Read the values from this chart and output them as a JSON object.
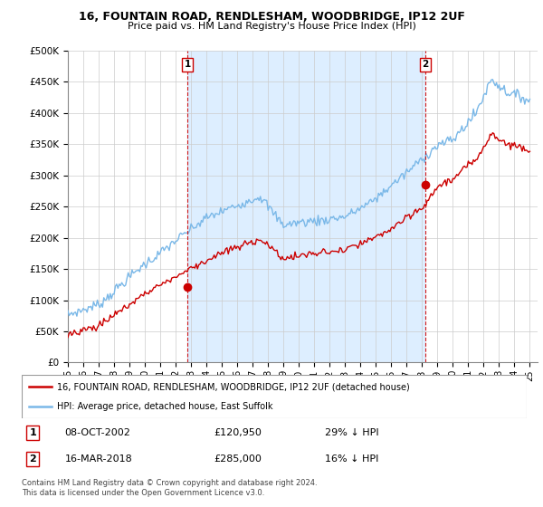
{
  "title": "16, FOUNTAIN ROAD, RENDLESHAM, WOODBRIDGE, IP12 2UF",
  "subtitle": "Price paid vs. HM Land Registry's House Price Index (HPI)",
  "ytick_values": [
    0,
    50000,
    100000,
    150000,
    200000,
    250000,
    300000,
    350000,
    400000,
    450000,
    500000
  ],
  "ylim": [
    0,
    500000
  ],
  "xlim_start": 1995.0,
  "xlim_end": 2025.5,
  "xtick_years": [
    1995,
    1996,
    1997,
    1998,
    1999,
    2000,
    2001,
    2002,
    2003,
    2004,
    2005,
    2006,
    2007,
    2008,
    2009,
    2010,
    2011,
    2012,
    2013,
    2014,
    2015,
    2016,
    2017,
    2018,
    2019,
    2020,
    2021,
    2022,
    2023,
    2024,
    2025
  ],
  "hpi_color": "#7ab8e8",
  "price_color": "#cc0000",
  "shade_color": "#ddeeff",
  "marker1_date": 2002.77,
  "marker1_price": 120950,
  "marker2_date": 2018.21,
  "marker2_price": 285000,
  "legend_line1": "16, FOUNTAIN ROAD, RENDLESHAM, WOODBRIDGE, IP12 2UF (detached house)",
  "legend_line2": "HPI: Average price, detached house, East Suffolk",
  "footer": "Contains HM Land Registry data © Crown copyright and database right 2024.\nThis data is licensed under the Open Government Licence v3.0.",
  "grid_color": "#cccccc"
}
